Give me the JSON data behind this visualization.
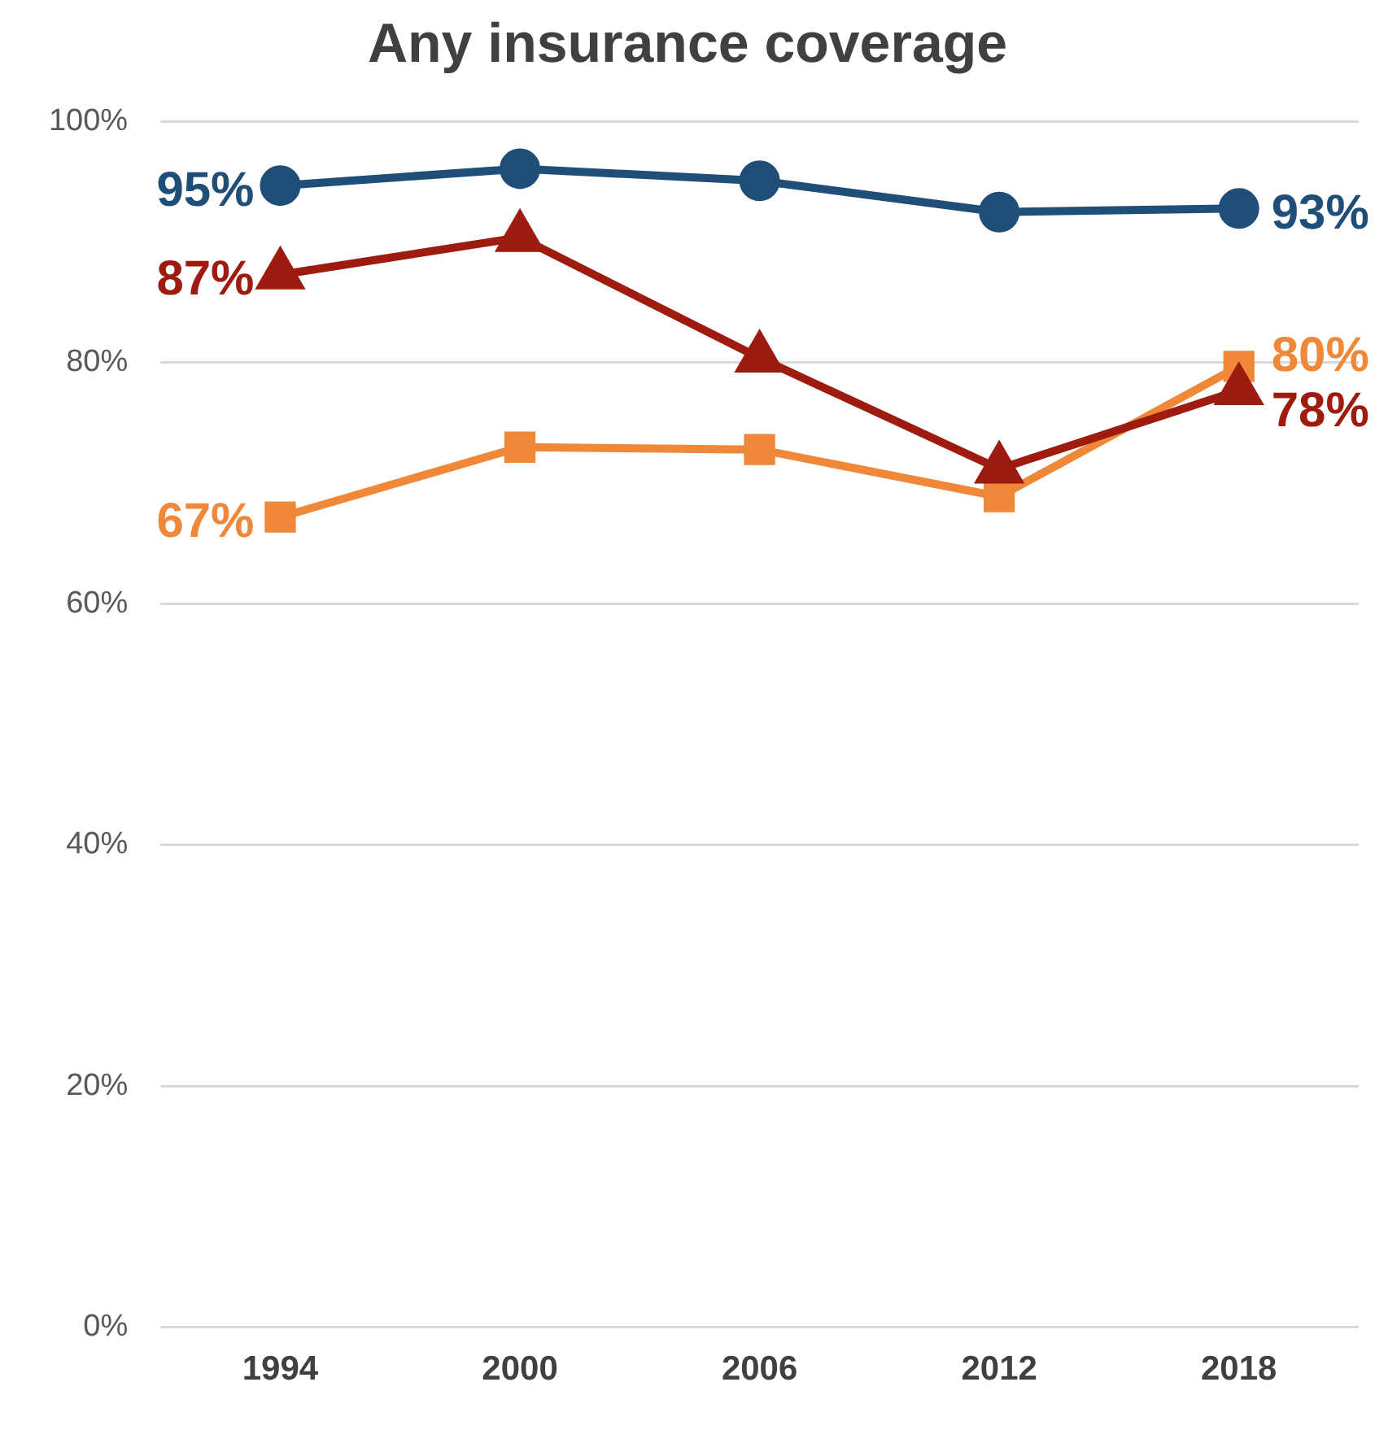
{
  "chart_data": {
    "type": "line",
    "title": "Any insurance coverage",
    "categories": [
      "1994",
      "2000",
      "2006",
      "2012",
      "2018"
    ],
    "series": [
      {
        "color": "#1f4e79",
        "marker": "circle",
        "values": [
          94.7,
          96.1,
          95.1,
          92.5,
          92.8
        ],
        "value_labels": [
          "95%",
          null,
          null,
          null,
          "93%"
        ]
      },
      {
        "color": "#9e1b0f",
        "marker": "triangle",
        "values": [
          87.3,
          90.4,
          80.4,
          71.2,
          77.7
        ],
        "value_labels": [
          "87%",
          null,
          null,
          null,
          "78%"
        ]
      },
      {
        "color": "#f0883a",
        "marker": "square",
        "values": [
          67.2,
          73.0,
          72.8,
          68.9,
          79.7
        ],
        "value_labels": [
          "67%",
          null,
          null,
          null,
          "80%"
        ]
      }
    ],
    "ylim": [
      0,
      100
    ],
    "yticks": [
      {
        "value": 0,
        "label": "0%"
      },
      {
        "value": 20,
        "label": "20%"
      },
      {
        "value": 40,
        "label": "40%"
      },
      {
        "value": 60,
        "label": "60%"
      },
      {
        "value": 80,
        "label": "80%"
      },
      {
        "value": 100,
        "label": "100%"
      }
    ],
    "grid": "y",
    "legend": false
  }
}
